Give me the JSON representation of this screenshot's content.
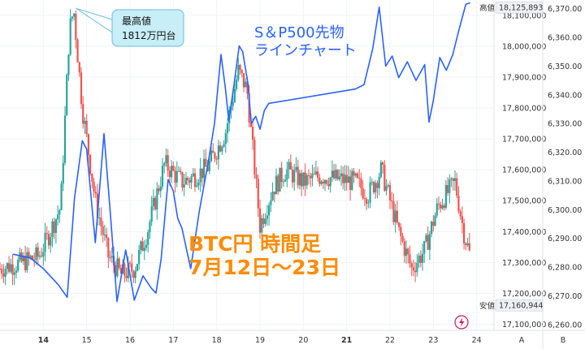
{
  "chart_data": {
    "type": "line",
    "overlay_label_lines": [
      "BTC円 時間足",
      "7月12日～23日"
    ],
    "series": [
      {
        "label_lines": [
          "S＆P500先物",
          "ラインチャート"
        ],
        "color": "#2962ff",
        "points": [
          [
            13.3,
            6284.5
          ],
          [
            13.7,
            6283.2
          ],
          [
            14.0,
            6279.5
          ],
          [
            14.35,
            6273.8
          ],
          [
            14.55,
            6269.5
          ],
          [
            14.72,
            6304.0
          ],
          [
            14.9,
            6324.0
          ],
          [
            15.0,
            6321.0
          ],
          [
            15.2,
            6288.5
          ],
          [
            15.4,
            6326.5
          ],
          [
            15.55,
            6298.0
          ],
          [
            15.7,
            6268.0
          ],
          [
            15.9,
            6286.0
          ],
          [
            16.1,
            6268.5
          ],
          [
            16.3,
            6277.0
          ],
          [
            16.5,
            6272.5
          ],
          [
            16.6,
            6271.0
          ],
          [
            16.72,
            6283.0
          ],
          [
            16.88,
            6310.5
          ],
          [
            17.0,
            6306.5
          ],
          [
            17.1,
            6297.0
          ],
          [
            17.2,
            6293.5
          ],
          [
            17.4,
            6279.5
          ],
          [
            17.6,
            6299.5
          ],
          [
            17.8,
            6316.0
          ],
          [
            17.95,
            6330.0
          ],
          [
            18.1,
            6354.0
          ],
          [
            18.2,
            6342.5
          ],
          [
            18.28,
            6331.0
          ],
          [
            18.4,
            6343.5
          ],
          [
            18.52,
            6357.0
          ],
          [
            18.6,
            6355.0
          ],
          [
            18.72,
            6344.0
          ],
          [
            18.8,
            6330.0
          ],
          [
            18.9,
            6332.5
          ],
          [
            19.0,
            6328.0
          ],
          [
            19.1,
            6334.5
          ],
          [
            19.2,
            6337.0
          ],
          [
            21.2,
            6342.0
          ],
          [
            21.4,
            6343.5
          ],
          [
            21.6,
            6356.0
          ],
          [
            21.75,
            6370.5
          ],
          [
            21.9,
            6350.0
          ],
          [
            22.05,
            6353.5
          ],
          [
            22.2,
            6346.0
          ],
          [
            22.4,
            6351.5
          ],
          [
            22.6,
            6345.0
          ],
          [
            22.8,
            6350.5
          ],
          [
            22.9,
            6330.5
          ],
          [
            23.0,
            6338.0
          ],
          [
            23.15,
            6353.0
          ],
          [
            23.3,
            6348.5
          ],
          [
            23.45,
            6354.0
          ],
          [
            23.58,
            6362.0
          ],
          [
            23.75,
            6371.5
          ],
          [
            23.85,
            6372.0
          ]
        ]
      },
      {
        "name": "BTC円",
        "color": "#26a69a",
        "color_down": "#ef5350",
        "points": [
          [
            13.0,
            17280000
          ],
          [
            13.5,
            17300000
          ],
          [
            13.9,
            17320000
          ],
          [
            14.1,
            17380000
          ],
          [
            14.4,
            17480000
          ],
          [
            14.6,
            18050000
          ],
          [
            14.7,
            18120000
          ],
          [
            14.9,
            17800000
          ],
          [
            15.2,
            17500000
          ],
          [
            15.5,
            17320000
          ],
          [
            15.8,
            17260000
          ],
          [
            16.1,
            17280000
          ],
          [
            16.4,
            17400000
          ],
          [
            16.8,
            17620000
          ],
          [
            17.2,
            17560000
          ],
          [
            17.5,
            17580000
          ],
          [
            17.8,
            17610000
          ],
          [
            18.2,
            17720000
          ],
          [
            18.5,
            17920000
          ],
          [
            18.7,
            17860000
          ],
          [
            19.0,
            17420000
          ],
          [
            19.3,
            17540000
          ],
          [
            19.6,
            17600000
          ],
          [
            20.0,
            17560000
          ],
          [
            20.4,
            17580000
          ],
          [
            20.8,
            17570000
          ],
          [
            21.2,
            17560000
          ],
          [
            21.5,
            17520000
          ],
          [
            21.8,
            17600000
          ],
          [
            22.2,
            17400000
          ],
          [
            22.5,
            17280000
          ],
          [
            22.8,
            17340000
          ],
          [
            23.1,
            17480000
          ],
          [
            23.5,
            17560000
          ],
          [
            23.7,
            17400000
          ],
          [
            23.85,
            17320000
          ]
        ]
      }
    ],
    "x_axis": {
      "ticks": [
        14,
        15,
        16,
        17,
        18,
        19,
        20,
        21,
        22,
        23,
        24
      ],
      "bold_ticks": [
        14,
        21
      ],
      "range": [
        13.0,
        24.4
      ]
    },
    "y_axis_left_price": {
      "ticks": [
        "18,100,000",
        "18,000,000",
        "17,900,000",
        "17,800,000",
        "17,700,000",
        "17,600,000",
        "17,500,000",
        "17,400,000",
        "17,300,000",
        "17,200,000",
        "17,100,000"
      ],
      "tick_values": [
        18100000,
        18000000,
        17900000,
        17800000,
        17700000,
        17600000,
        17500000,
        17400000,
        17300000,
        17200000,
        17100000
      ],
      "range": [
        17080000,
        18150000
      ]
    },
    "y_axis_right_index": {
      "ticks": [
        "6,370.00",
        "6,360.00",
        "6,350.00",
        "6,340.00",
        "6,330.00",
        "6,320.00",
        "6,310.00",
        "6,300.00",
        "6,290.00",
        "6,280.00",
        "6,270.00",
        "6,260.00"
      ],
      "tick_values": [
        6370,
        6360,
        6350,
        6340,
        6330,
        6320,
        6310,
        6300,
        6290,
        6280,
        6270,
        6260
      ],
      "range": [
        6258,
        6373
      ]
    },
    "high_marker": {
      "label": "高値",
      "value_label": "18,125,893",
      "value": 18125893
    },
    "low_marker": {
      "label": "安値",
      "value_label": "17,160,944",
      "value": 17160944
    },
    "annotation": {
      "lines": [
        "最高値",
        "1812万円台"
      ],
      "value": 18125893,
      "x": 14.75
    },
    "footer_letters": [
      "A",
      "B"
    ]
  }
}
